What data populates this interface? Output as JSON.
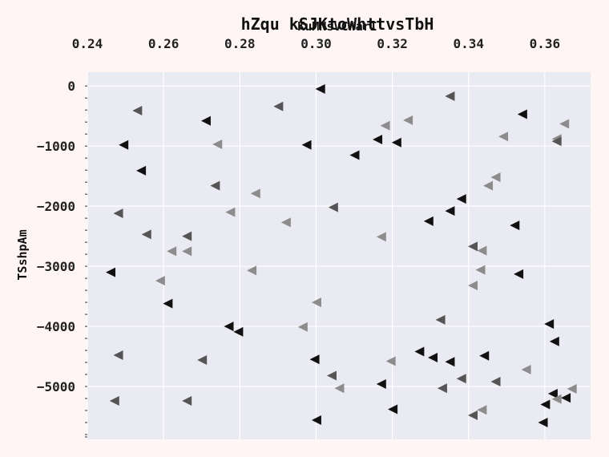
{
  "chart_data": {
    "type": "scatter",
    "title": "hZqu  kSJKtoWhttvsTbH",
    "xlabel": "KuMNsVCWarI",
    "ylabel": "TSshpAm",
    "x_axis_position": "top",
    "xlim": [
      0.24,
      0.372
    ],
    "ylim": [
      -5880,
      230
    ],
    "xticks": [
      0.24,
      0.26,
      0.28,
      0.3,
      0.32,
      0.34,
      0.36
    ],
    "xtick_labels": [
      "0.24",
      "0.26",
      "0.28",
      "0.30",
      "0.32",
      "0.34",
      "0.36"
    ],
    "yticks": [
      0,
      -1000,
      -2000,
      -3000,
      -4000,
      -5000
    ],
    "ytick_labels": [
      "0",
      "−1000",
      "−2000",
      "−3000",
      "−4000",
      "−5000"
    ],
    "grid": true,
    "marker": "triangle-left",
    "colors": {
      "dark": "#111111",
      "medium": "#555555",
      "light": "#8c8c8c",
      "background": "#eaeaf2",
      "grid": "#ffffff",
      "page": "#fff5f5"
    },
    "points": [
      {
        "x": 0.3011,
        "y": -50,
        "shade": "dark"
      },
      {
        "x": 0.3351,
        "y": -170,
        "shade": "medium"
      },
      {
        "x": 0.2901,
        "y": -340,
        "shade": "medium"
      },
      {
        "x": 0.2531,
        "y": -410,
        "shade": "medium"
      },
      {
        "x": 0.3541,
        "y": -470,
        "shade": "dark"
      },
      {
        "x": 0.2711,
        "y": -580,
        "shade": "dark"
      },
      {
        "x": 0.3241,
        "y": -570,
        "shade": "light"
      },
      {
        "x": 0.3181,
        "y": -660,
        "shade": "light"
      },
      {
        "x": 0.3651,
        "y": -630,
        "shade": "light"
      },
      {
        "x": 0.3491,
        "y": -840,
        "shade": "light"
      },
      {
        "x": 0.3631,
        "y": -880,
        "shade": "light"
      },
      {
        "x": 0.3631,
        "y": -920,
        "shade": "medium"
      },
      {
        "x": 0.3161,
        "y": -890,
        "shade": "dark"
      },
      {
        "x": 0.3211,
        "y": -940,
        "shade": "dark"
      },
      {
        "x": 0.2495,
        "y": -980,
        "shade": "dark"
      },
      {
        "x": 0.2741,
        "y": -970,
        "shade": "light"
      },
      {
        "x": 0.2975,
        "y": -980,
        "shade": "dark"
      },
      {
        "x": 0.3101,
        "y": -1150,
        "shade": "dark"
      },
      {
        "x": 0.2541,
        "y": -1410,
        "shade": "dark"
      },
      {
        "x": 0.3471,
        "y": -1520,
        "shade": "light"
      },
      {
        "x": 0.3451,
        "y": -1660,
        "shade": "light"
      },
      {
        "x": 0.2735,
        "y": -1660,
        "shade": "medium"
      },
      {
        "x": 0.2841,
        "y": -1790,
        "shade": "light"
      },
      {
        "x": 0.3381,
        "y": -1880,
        "shade": "dark"
      },
      {
        "x": 0.3045,
        "y": -2020,
        "shade": "medium"
      },
      {
        "x": 0.3351,
        "y": -2080,
        "shade": "dark"
      },
      {
        "x": 0.2481,
        "y": -2120,
        "shade": "medium"
      },
      {
        "x": 0.2775,
        "y": -2100,
        "shade": "light"
      },
      {
        "x": 0.3295,
        "y": -2250,
        "shade": "dark"
      },
      {
        "x": 0.2921,
        "y": -2270,
        "shade": "light"
      },
      {
        "x": 0.3521,
        "y": -2320,
        "shade": "dark"
      },
      {
        "x": 0.2555,
        "y": -2470,
        "shade": "medium"
      },
      {
        "x": 0.2661,
        "y": -2500,
        "shade": "medium"
      },
      {
        "x": 0.3171,
        "y": -2510,
        "shade": "light"
      },
      {
        "x": 0.3411,
        "y": -2670,
        "shade": "medium"
      },
      {
        "x": 0.3435,
        "y": -2740,
        "shade": "light"
      },
      {
        "x": 0.2621,
        "y": -2750,
        "shade": "light"
      },
      {
        "x": 0.2661,
        "y": -2750,
        "shade": "light"
      },
      {
        "x": 0.2831,
        "y": -3070,
        "shade": "light"
      },
      {
        "x": 0.3431,
        "y": -3060,
        "shade": "light"
      },
      {
        "x": 0.2461,
        "y": -3100,
        "shade": "dark"
      },
      {
        "x": 0.3531,
        "y": -3130,
        "shade": "dark"
      },
      {
        "x": 0.2591,
        "y": -3240,
        "shade": "light"
      },
      {
        "x": 0.3411,
        "y": -3320,
        "shade": "light"
      },
      {
        "x": 0.3001,
        "y": -3600,
        "shade": "light"
      },
      {
        "x": 0.2611,
        "y": -3620,
        "shade": "dark"
      },
      {
        "x": 0.3326,
        "y": -3890,
        "shade": "medium"
      },
      {
        "x": 0.3611,
        "y": -3960,
        "shade": "dark"
      },
      {
        "x": 0.2771,
        "y": -4000,
        "shade": "dark"
      },
      {
        "x": 0.2965,
        "y": -4010,
        "shade": "light"
      },
      {
        "x": 0.2796,
        "y": -4090,
        "shade": "dark"
      },
      {
        "x": 0.3625,
        "y": -4250,
        "shade": "dark"
      },
      {
        "x": 0.3271,
        "y": -4420,
        "shade": "dark"
      },
      {
        "x": 0.2481,
        "y": -4480,
        "shade": "medium"
      },
      {
        "x": 0.3441,
        "y": -4490,
        "shade": "dark"
      },
      {
        "x": 0.3306,
        "y": -4520,
        "shade": "dark"
      },
      {
        "x": 0.2996,
        "y": -4550,
        "shade": "dark"
      },
      {
        "x": 0.2701,
        "y": -4560,
        "shade": "medium"
      },
      {
        "x": 0.3351,
        "y": -4590,
        "shade": "dark"
      },
      {
        "x": 0.3196,
        "y": -4580,
        "shade": "light"
      },
      {
        "x": 0.3551,
        "y": -4720,
        "shade": "light"
      },
      {
        "x": 0.3041,
        "y": -4820,
        "shade": "medium"
      },
      {
        "x": 0.3381,
        "y": -4870,
        "shade": "medium"
      },
      {
        "x": 0.3471,
        "y": -4920,
        "shade": "medium"
      },
      {
        "x": 0.3171,
        "y": -4960,
        "shade": "dark"
      },
      {
        "x": 0.3061,
        "y": -5030,
        "shade": "light"
      },
      {
        "x": 0.3331,
        "y": -5030,
        "shade": "medium"
      },
      {
        "x": 0.3671,
        "y": -5040,
        "shade": "light"
      },
      {
        "x": 0.3621,
        "y": -5120,
        "shade": "dark"
      },
      {
        "x": 0.3655,
        "y": -5190,
        "shade": "dark"
      },
      {
        "x": 0.3631,
        "y": -5210,
        "shade": "light"
      },
      {
        "x": 0.2471,
        "y": -5240,
        "shade": "medium"
      },
      {
        "x": 0.2661,
        "y": -5240,
        "shade": "medium"
      },
      {
        "x": 0.3601,
        "y": -5300,
        "shade": "dark"
      },
      {
        "x": 0.3201,
        "y": -5380,
        "shade": "dark"
      },
      {
        "x": 0.3435,
        "y": -5390,
        "shade": "light"
      },
      {
        "x": 0.3411,
        "y": -5480,
        "shade": "medium"
      },
      {
        "x": 0.3001,
        "y": -5560,
        "shade": "dark"
      },
      {
        "x": 0.3595,
        "y": -5600,
        "shade": "dark"
      }
    ]
  }
}
